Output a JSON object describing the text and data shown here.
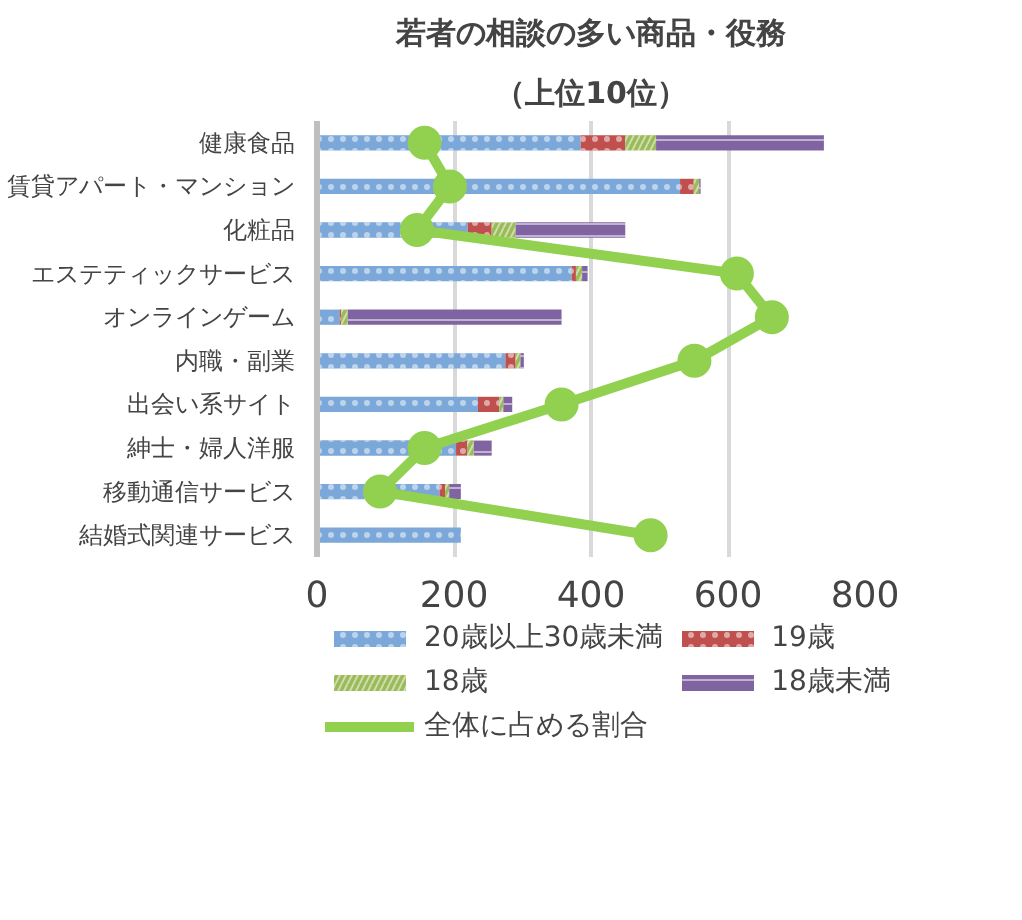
{
  "chart_data": {
    "type": "bar",
    "orientation": "horizontal",
    "stacked": true,
    "title": "若者の相談の多い商品・役務",
    "subtitle": "（上位10位）",
    "categories": [
      "健康食品",
      "賃貸アパート・マンション",
      "化粧品",
      "エステティックサービス",
      "オンラインゲーム",
      "内職・副業",
      "出会い系サイト",
      "紳士・婦人洋服",
      "移動通信サービス",
      "結婚式関連サービス"
    ],
    "series": [
      {
        "name": "20歳以上30歳未満",
        "color": "#7ba7d9",
        "values": [
          385,
          530,
          220,
          372,
          33,
          275,
          235,
          203,
          179,
          210
        ]
      },
      {
        "name": "19歳",
        "color": "#c0504d",
        "values": [
          65,
          20,
          35,
          6,
          2,
          15,
          31,
          16,
          8,
          0
        ]
      },
      {
        "name": "18歳",
        "color": "#9bbb59",
        "values": [
          45,
          8,
          35,
          9,
          10,
          7,
          6,
          10,
          6,
          0
        ]
      },
      {
        "name": "18歳未満",
        "color": "#8064a2",
        "values": [
          245,
          2,
          160,
          8,
          312,
          5,
          13,
          26,
          17,
          0
        ]
      },
      {
        "name": "全体に占める割合",
        "type": "line",
        "color": "#92d050",
        "marker": "circle",
        "values": [
          157,
          194,
          146,
          613,
          664,
          551,
          357,
          157,
          92,
          487
        ]
      }
    ],
    "xlim": [
      0,
      800
    ],
    "xticks": [
      0,
      200,
      400,
      600,
      800
    ],
    "grid": "x",
    "legend": "bottom"
  }
}
